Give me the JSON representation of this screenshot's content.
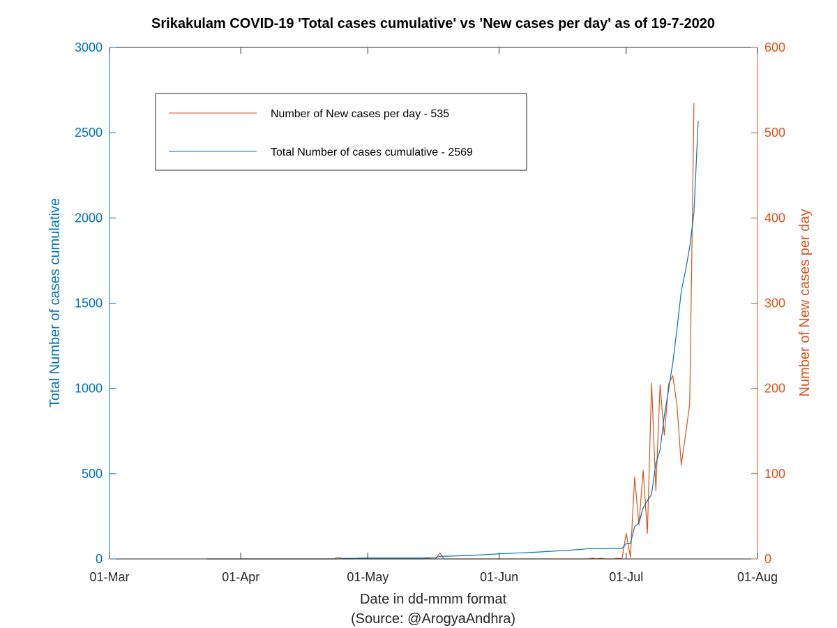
{
  "chart_data": {
    "type": "line",
    "title": "Srikakulam COVID-19 'Total cases cumulative' vs 'New cases per day' as of 19-7-2020",
    "xlabel": "Date in dd-mmm format",
    "source": "(Source: @ArogyaAndhra)",
    "ylabel_left": "Total Number of cases cumulative",
    "ylabel_right": "Number of New cases per day",
    "xlim": [
      "2020-03-01",
      "2020-08-01"
    ],
    "ylim_left": [
      0,
      3000
    ],
    "ylim_right": [
      0,
      600
    ],
    "x_ticks": [
      {
        "date": "2020-03-01",
        "label": "01-Mar"
      },
      {
        "date": "2020-04-01",
        "label": "01-Apr"
      },
      {
        "date": "2020-05-01",
        "label": "01-May"
      },
      {
        "date": "2020-06-01",
        "label": "01-Jun"
      },
      {
        "date": "2020-07-01",
        "label": "01-Jul"
      },
      {
        "date": "2020-08-01",
        "label": "01-Aug"
      }
    ],
    "y_ticks_left": [
      "0",
      "500",
      "1000",
      "1500",
      "2000",
      "2500",
      "3000"
    ],
    "y_ticks_right": [
      "0",
      "100",
      "200",
      "300",
      "400",
      "500",
      "600"
    ],
    "legend": {
      "position": "upper-left",
      "entries": [
        {
          "series": "new",
          "label": "Number of New cases per day - 535"
        },
        {
          "series": "total",
          "label": "Total Number of cases cumulative - 2569"
        }
      ]
    },
    "series": [
      {
        "id": "total",
        "axis": "left",
        "color": "#0072BD",
        "points": [
          [
            "2020-03-24",
            0
          ],
          [
            "2020-04-24",
            0
          ],
          [
            "2020-04-25",
            3
          ],
          [
            "2020-04-27",
            3
          ],
          [
            "2020-04-29",
            4
          ],
          [
            "2020-05-01",
            5
          ],
          [
            "2020-05-05",
            5
          ],
          [
            "2020-05-10",
            5
          ],
          [
            "2020-05-14",
            5
          ],
          [
            "2020-05-15",
            7
          ],
          [
            "2020-05-17",
            7
          ],
          [
            "2020-05-18",
            15
          ],
          [
            "2020-05-25",
            20
          ],
          [
            "2020-06-01",
            30
          ],
          [
            "2020-06-10",
            40
          ],
          [
            "2020-06-20",
            55
          ],
          [
            "2020-06-22",
            60
          ],
          [
            "2020-06-28",
            62
          ],
          [
            "2020-06-30",
            62
          ],
          [
            "2020-07-01",
            90
          ],
          [
            "2020-07-02",
            92
          ],
          [
            "2020-07-03",
            190
          ],
          [
            "2020-07-04",
            210
          ],
          [
            "2020-07-05",
            300
          ],
          [
            "2020-07-06",
            340
          ],
          [
            "2020-07-07",
            380
          ],
          [
            "2020-07-08",
            560
          ],
          [
            "2020-07-09",
            640
          ],
          [
            "2020-07-10",
            840
          ],
          [
            "2020-07-11",
            990
          ],
          [
            "2020-07-12",
            1150
          ],
          [
            "2020-07-13",
            1350
          ],
          [
            "2020-07-14",
            1570
          ],
          [
            "2020-07-15",
            1690
          ],
          [
            "2020-07-16",
            1830
          ],
          [
            "2020-07-17",
            2030
          ],
          [
            "2020-07-18",
            2569
          ]
        ]
      },
      {
        "id": "new",
        "axis": "right",
        "color": "#D95319",
        "points": [
          [
            "2020-03-24",
            0
          ],
          [
            "2020-04-23",
            0
          ],
          [
            "2020-04-24",
            2
          ],
          [
            "2020-04-25",
            0
          ],
          [
            "2020-04-27",
            0
          ],
          [
            "2020-04-29",
            1
          ],
          [
            "2020-05-01",
            0
          ],
          [
            "2020-05-14",
            0
          ],
          [
            "2020-05-15",
            1
          ],
          [
            "2020-05-16",
            0
          ],
          [
            "2020-05-17",
            0
          ],
          [
            "2020-05-18",
            7
          ],
          [
            "2020-05-19",
            0
          ],
          [
            "2020-06-22",
            0
          ],
          [
            "2020-06-23",
            1
          ],
          [
            "2020-06-24",
            0
          ],
          [
            "2020-06-25",
            1
          ],
          [
            "2020-06-26",
            0
          ],
          [
            "2020-06-28",
            0
          ],
          [
            "2020-06-29",
            1
          ],
          [
            "2020-06-30",
            0
          ],
          [
            "2020-07-01",
            30
          ],
          [
            "2020-07-02",
            2
          ],
          [
            "2020-07-03",
            96
          ],
          [
            "2020-07-04",
            40
          ],
          [
            "2020-07-05",
            104
          ],
          [
            "2020-07-06",
            30
          ],
          [
            "2020-07-07",
            206
          ],
          [
            "2020-07-08",
            80
          ],
          [
            "2020-07-09",
            204
          ],
          [
            "2020-07-10",
            145
          ],
          [
            "2020-07-11",
            205
          ],
          [
            "2020-07-12",
            215
          ],
          [
            "2020-07-13",
            180
          ],
          [
            "2020-07-14",
            110
          ],
          [
            "2020-07-15",
            145
          ],
          [
            "2020-07-16",
            182
          ],
          [
            "2020-07-17",
            535
          ]
        ]
      }
    ]
  }
}
